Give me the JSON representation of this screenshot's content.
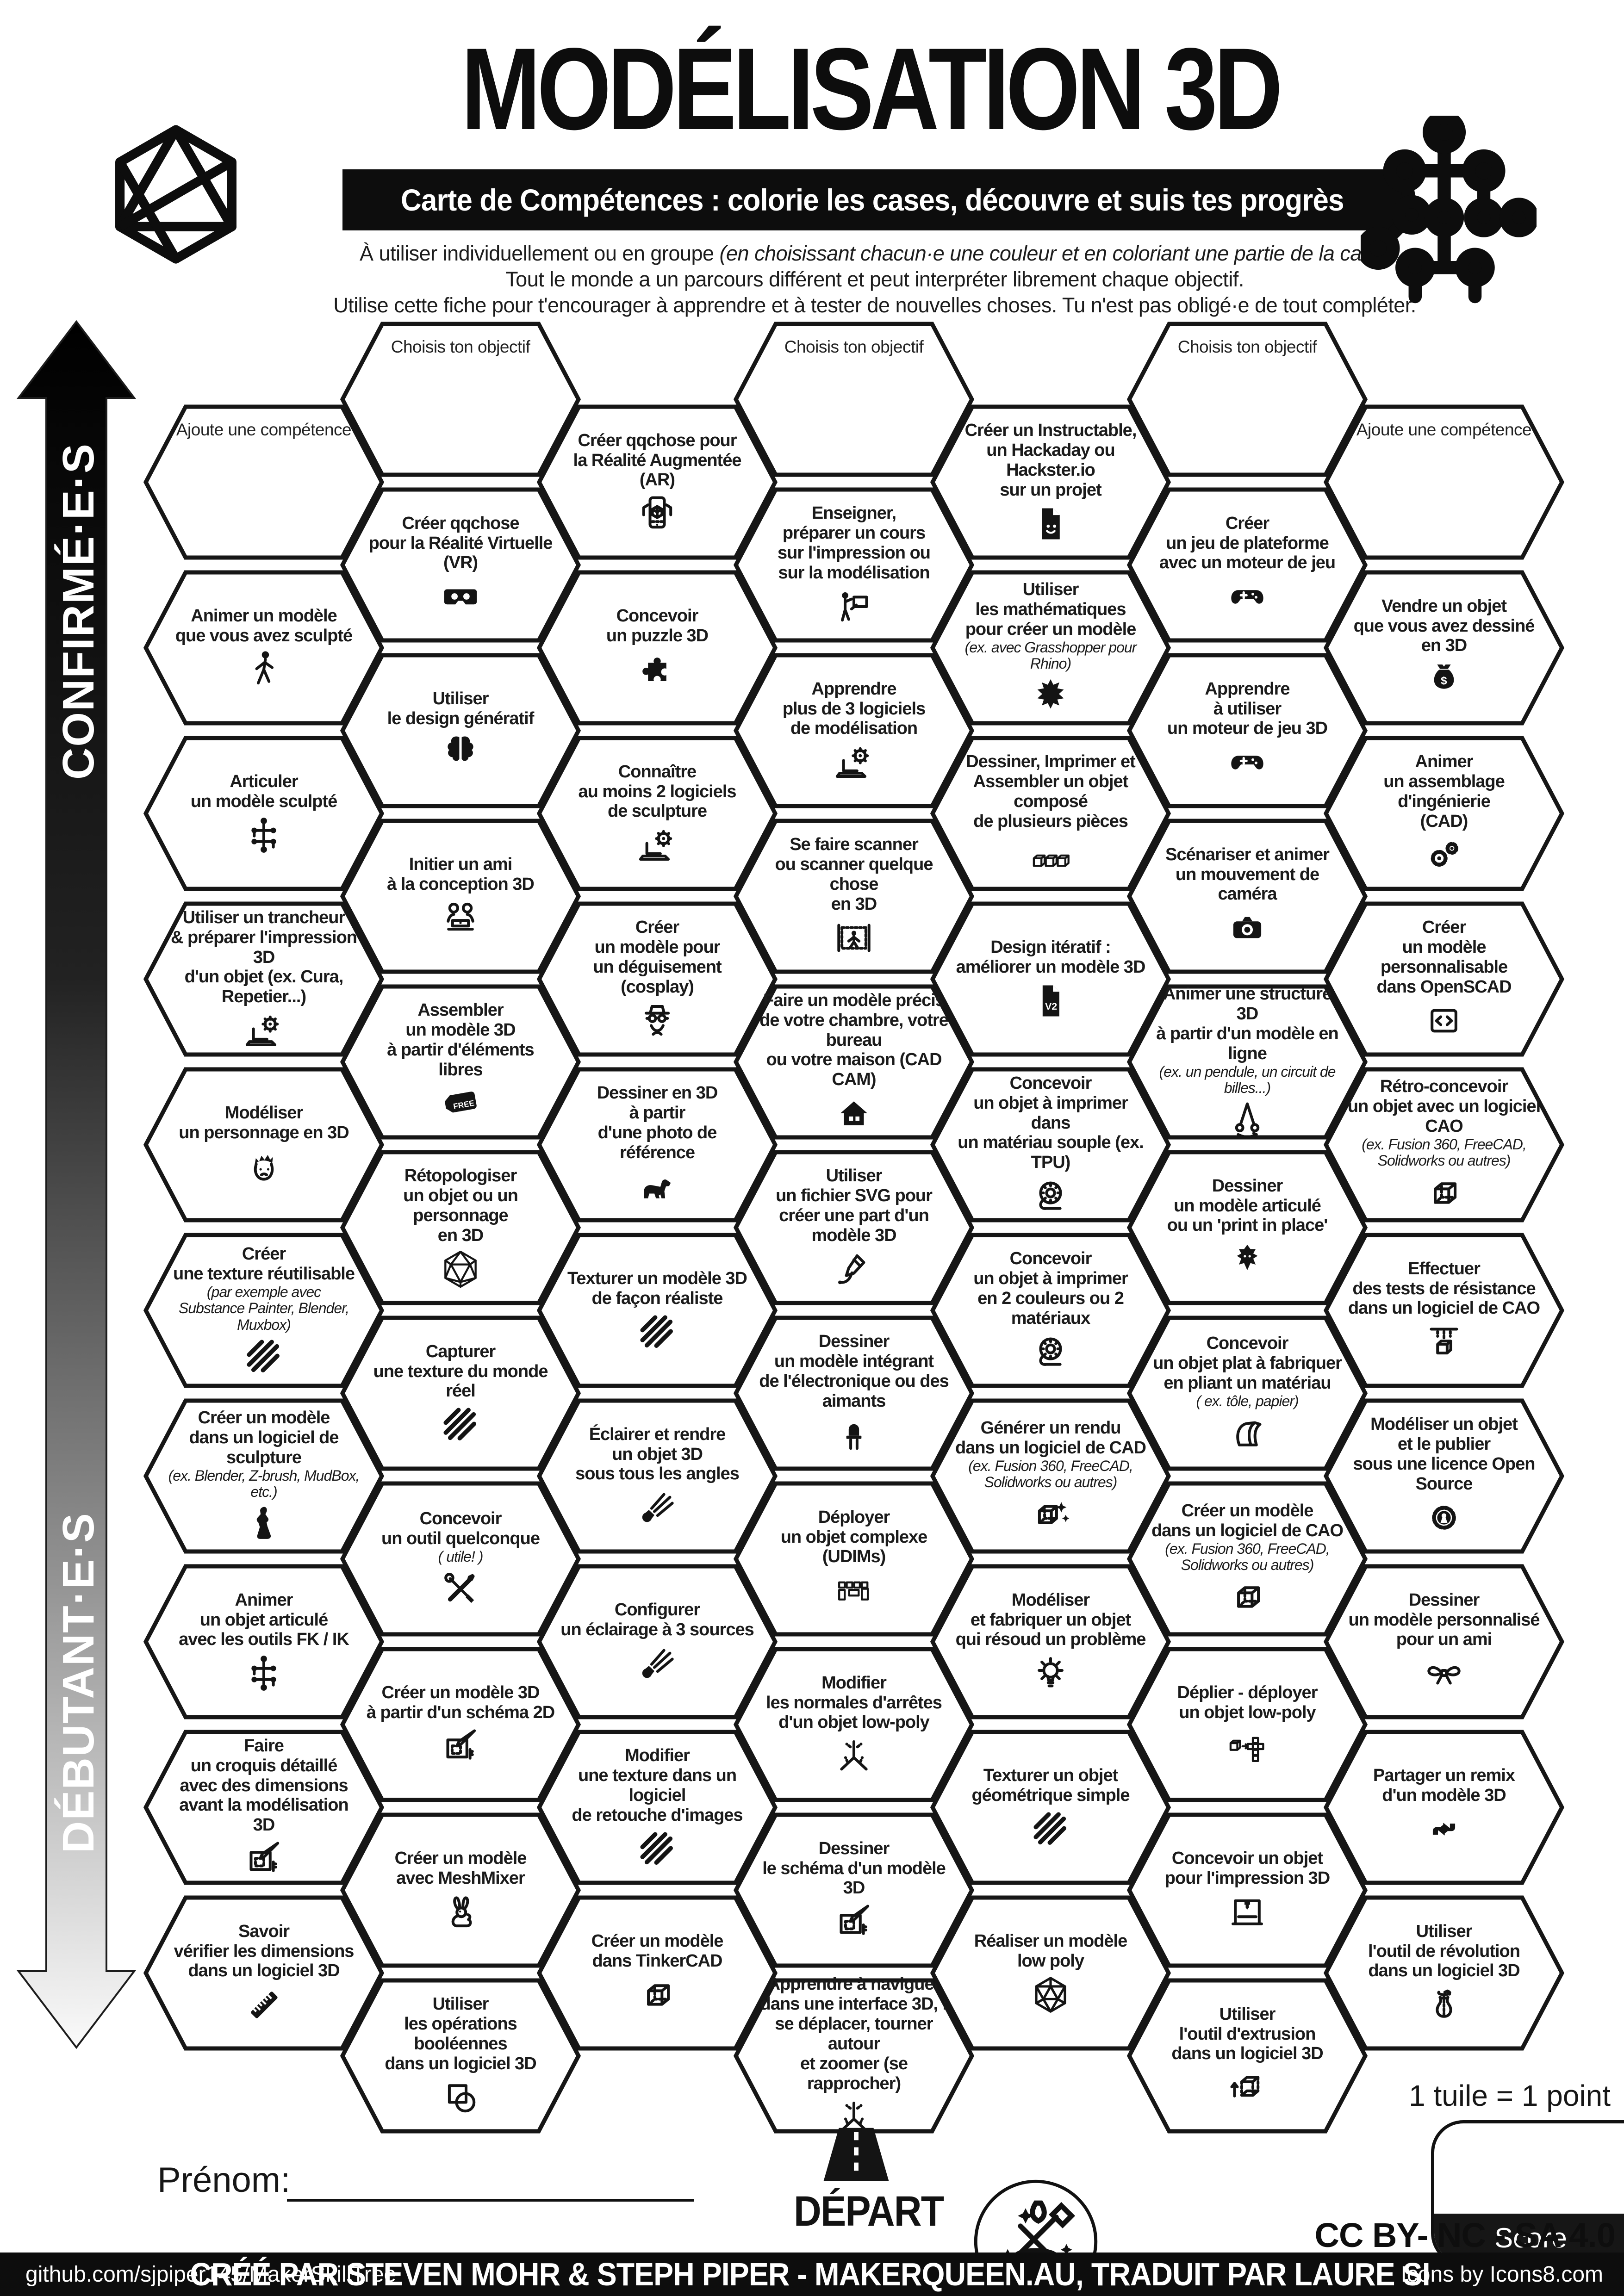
{
  "header": {
    "title": "MODÉLISATION 3D",
    "banner": "Carte de Compétences : colorie les cases, découvre et suis tes progrès",
    "intro1a": "À utiliser individuellement ou en groupe ",
    "intro1b": "(en choisissant chacun·e une couleur et en coloriant une partie de la case)",
    "intro2": "Tout le monde a un parcours différent et peut interpréter librement chaque objectif.",
    "intro3": "Utilise cette fiche pour t'encourager à apprendre et à tester de nouvelles choses. Tu n'est pas obligé·e de tout compléter."
  },
  "axis": {
    "top": "CONFIRMÉ·E·S",
    "bottom": "DÉBUTANT·E·S"
  },
  "name_field": {
    "label": "Prénom:"
  },
  "start": {
    "label": "DÉPART"
  },
  "score": {
    "note": "1 tuile = 1 point",
    "label": "Score"
  },
  "license": {
    "text": "CC BY- NC - SA 4.0"
  },
  "footer": {
    "left": "github.com/sjpiper145/MakerSkillTree",
    "center": "CRÉÉ PAR STEVEN MOHR & STEPH PIPER - MAKERQUEEN.AU, TRADUIT PAR LAURE SI",
    "right": "Icons by Icons8.com"
  },
  "colors": {
    "ink": "#141414",
    "paper": "#ffffff"
  },
  "columns": [
    {
      "stagger": "low",
      "hexes": [
        {
          "starter": true,
          "lines": [
            "Ajoute une compétence"
          ]
        },
        {
          "lines": [
            "Animer un modèle",
            "que vous avez sculpté"
          ],
          "icon": "person-walk"
        },
        {
          "lines": [
            "Articuler",
            "un modèle sculpté"
          ],
          "icon": "armature"
        },
        {
          "lines": [
            "Utiliser un trancheur",
            "& préparer l'impression 3D",
            "d'un objet (ex. Cura, Repetier...)"
          ],
          "icon": "laptop-gear"
        },
        {
          "lines": [
            "Modéliser",
            "un personnage en 3D"
          ],
          "icon": "face"
        },
        {
          "lines": [
            "Créer",
            "une texture réutilisable"
          ],
          "sub": [
            "(par exemple avec",
            "Substance Painter, Blender, Muxbox)"
          ],
          "icon": "stripes"
        },
        {
          "lines": [
            "Créer un modèle",
            "dans un logiciel de sculpture"
          ],
          "sub": [
            "(ex. Blender, Z-brush, MudBox, etc.)"
          ],
          "icon": "statue"
        },
        {
          "lines": [
            "Animer",
            "un objet articulé",
            "avec les outils FK / IK"
          ],
          "icon": "armature"
        },
        {
          "lines": [
            "Faire",
            "un croquis détaillé",
            "avec des dimensions",
            "avant la modélisation 3D"
          ],
          "icon": "sketch"
        },
        {
          "lines": [
            "Savoir",
            "vérifier les dimensions",
            "dans un logiciel 3D"
          ],
          "icon": "ruler"
        }
      ]
    },
    {
      "stagger": "high",
      "hexes": [
        {
          "starter": true,
          "lines": [
            "Choisis ton objectif"
          ]
        },
        {
          "lines": [
            "Créer qqchose",
            "pour la Réalité Virtuelle (VR)"
          ],
          "icon": "vr"
        },
        {
          "lines": [
            "Utiliser",
            "le design génératif"
          ],
          "icon": "brain"
        },
        {
          "lines": [
            "Initier un ami",
            "à la conception 3D"
          ],
          "icon": "people"
        },
        {
          "lines": [
            "Assembler",
            "un modèle 3D",
            "à partir d'éléments libres"
          ],
          "icon": "free"
        },
        {
          "lines": [
            "Rétopologiser",
            "un objet ou un personnage",
            "en 3D"
          ],
          "icon": "icosa-wire"
        },
        {
          "lines": [
            "Capturer",
            "une texture du monde réel"
          ],
          "icon": "stripes"
        },
        {
          "lines": [
            "Concevoir",
            "un outil quelconque"
          ],
          "sub": [
            "( utile! )"
          ],
          "icon": "tools"
        },
        {
          "lines": [
            "Créer un modèle 3D",
            "à partir d'un schéma 2D"
          ],
          "icon": "sketch"
        },
        {
          "lines": [
            "Créer un modèle",
            "avec MeshMixer"
          ],
          "icon": "rabbit"
        },
        {
          "lines": [
            "Utiliser",
            "les opérations booléennes",
            "dans un logiciel 3D"
          ],
          "icon": "boolean"
        }
      ]
    },
    {
      "stagger": "low",
      "hexes": [
        {
          "lines": [
            "Créer qqchose pour",
            "la Réalité Augmentée (AR)"
          ],
          "icon": "phone-ar"
        },
        {
          "lines": [
            "Concevoir",
            "un puzzle 3D"
          ],
          "icon": "puzzle"
        },
        {
          "lines": [
            "Connaître",
            "au moins 2 logiciels",
            "de sculpture"
          ],
          "icon": "laptop-gear"
        },
        {
          "lines": [
            "Créer",
            "un modèle pour",
            "un déguisement (cosplay)"
          ],
          "icon": "cosplay"
        },
        {
          "lines": [
            "Dessiner en 3D",
            "à partir",
            "d'une photo de référence"
          ],
          "icon": "dog"
        },
        {
          "lines": [
            "Texturer un modèle 3D",
            "de façon réaliste"
          ],
          "icon": "stripes"
        },
        {
          "lines": [
            "Éclairer et rendre",
            "un objet 3D",
            "sous tous les angles"
          ],
          "icon": "spotlight"
        },
        {
          "lines": [
            "Configurer",
            "un éclairage à 3 sources"
          ],
          "icon": "spotlight"
        },
        {
          "lines": [
            "Modifier",
            "une texture dans un logiciel",
            "de retouche d'images"
          ],
          "icon": "stripes"
        },
        {
          "lines": [
            "Créer un modèle",
            "dans TinkerCAD"
          ],
          "icon": "cube"
        }
      ]
    },
    {
      "stagger": "high",
      "hexes": [
        {
          "starter": true,
          "lines": [
            "Choisis ton objectif"
          ]
        },
        {
          "lines": [
            "Enseigner,",
            "préparer un cours",
            "sur l'impression ou",
            "sur la modélisation"
          ],
          "icon": "teacher"
        },
        {
          "lines": [
            "Apprendre",
            "plus de 3 logiciels",
            "de modélisation"
          ],
          "icon": "laptop-gear"
        },
        {
          "lines": [
            "Se faire scanner",
            "ou scanner quelque chose",
            "en 3D"
          ],
          "icon": "scan"
        },
        {
          "lines": [
            "Faire un modèle précis",
            "de votre chambre, votre bureau",
            "ou votre maison (CAD CAM)"
          ],
          "icon": "house"
        },
        {
          "lines": [
            "Utiliser",
            "un fichier SVG pour",
            "créer une part d'un modèle 3D"
          ],
          "icon": "svg-pen"
        },
        {
          "lines": [
            "Dessiner",
            "un modèle intégrant",
            "de l'électronique ou des aimants"
          ],
          "icon": "led"
        },
        {
          "lines": [
            "Déployer",
            "un objet complexe (UDIMs)"
          ],
          "icon": "udim"
        },
        {
          "lines": [
            "Modifier",
            "les normales d'arrêtes",
            "d'un objet low-poly"
          ],
          "icon": "normals"
        },
        {
          "lines": [
            "Dessiner",
            "le schéma d'un modèle 3D"
          ],
          "icon": "sketch"
        },
        {
          "lines": [
            "Apprendre à naviguer",
            "dans une interface 3D, :",
            "se déplacer, tourner autour",
            "et zoomer (se rapprocher)"
          ],
          "icon": "normals"
        }
      ]
    },
    {
      "stagger": "low",
      "hexes": [
        {
          "lines": [
            "Créer un Instructable,",
            "un Hackaday ou Hackster.io",
            "sur un projet"
          ],
          "icon": "doc-smile"
        },
        {
          "lines": [
            "Utiliser",
            "les mathématiques",
            "pour créer un modèle"
          ],
          "sub": [
            "(ex. avec Grasshopper pour Rhino)"
          ],
          "icon": "fractal"
        },
        {
          "lines": [
            "Dessiner, Imprimer et",
            "Assembler un objet composé",
            "de plusieurs pièces"
          ],
          "icon": "cubes3"
        },
        {
          "lines": [
            "Design itératif :",
            "améliorer un modèle 3D"
          ],
          "icon": "v2"
        },
        {
          "lines": [
            "Concevoir",
            "un objet à imprimer dans",
            "un matériau souple (ex. TPU)"
          ],
          "icon": "spool"
        },
        {
          "lines": [
            "Concevoir",
            "un objet à imprimer",
            "en 2 couleurs ou 2 matériaux"
          ],
          "icon": "spool"
        },
        {
          "lines": [
            "Générer un rendu",
            "dans un logiciel de CAD"
          ],
          "sub": [
            "(ex. Fusion 360, FreeCAD,",
            "Solidworks ou autres)"
          ],
          "icon": "cube-sparkle"
        },
        {
          "lines": [
            "Modéliser",
            "et fabriquer un objet",
            "qui résoud un problème"
          ],
          "icon": "bulb"
        },
        {
          "lines": [
            "Texturer un objet",
            "géométrique simple"
          ],
          "icon": "stripes"
        },
        {
          "lines": [
            "Réaliser un modèle",
            "low poly"
          ],
          "icon": "icosa"
        }
      ]
    },
    {
      "stagger": "high",
      "hexes": [
        {
          "starter": true,
          "lines": [
            "Choisis ton objectif"
          ]
        },
        {
          "lines": [
            "Créer",
            "un jeu de plateforme",
            "avec un moteur de jeu"
          ],
          "icon": "controller"
        },
        {
          "lines": [
            "Apprendre",
            "à utiliser",
            "un moteur de jeu 3D"
          ],
          "icon": "controller"
        },
        {
          "lines": [
            "Scénariser et animer",
            "un mouvement de caméra"
          ],
          "icon": "camera"
        },
        {
          "lines": [
            "Animer une structure 3D",
            "à partir d'un modèle en ligne"
          ],
          "sub": [
            "(ex. un pendule, un circuit de billes...)"
          ],
          "icon": "pendulum"
        },
        {
          "lines": [
            "Dessiner",
            "un modèle articulé",
            "ou un 'print in place'"
          ],
          "icon": "dragon"
        },
        {
          "lines": [
            "Concevoir",
            "un objet plat à fabriquer",
            "en pliant un matériau"
          ],
          "sub": [
            "( ex. tôle, papier)"
          ],
          "icon": "fold"
        },
        {
          "lines": [
            "Créer un modèle",
            "dans un logiciel de CAO"
          ],
          "sub": [
            "(ex. Fusion 360, FreeCAD,",
            "Solidworks ou autres)"
          ],
          "icon": "cube"
        },
        {
          "lines": [
            "Déplier - déployer",
            "un objet low-poly"
          ],
          "icon": "unfold"
        },
        {
          "lines": [
            "Concevoir un objet",
            "pour l'impression 3D"
          ],
          "icon": "printer"
        },
        {
          "lines": [
            "Utiliser",
            "l'outil d'extrusion",
            "dans un logiciel 3D"
          ],
          "icon": "extrude"
        }
      ]
    },
    {
      "stagger": "low",
      "hexes": [
        {
          "starter": true,
          "lines": [
            "Ajoute une compétence"
          ]
        },
        {
          "lines": [
            "Vendre un objet",
            "que vous avez dessiné en 3D"
          ],
          "icon": "money"
        },
        {
          "lines": [
            "Animer",
            "un assemblage d'ingénierie",
            "(CAD)"
          ],
          "icon": "gears"
        },
        {
          "lines": [
            "Créer",
            "un modèle personnalisable",
            "dans OpenSCAD"
          ],
          "icon": "code"
        },
        {
          "lines": [
            "Rétro-concevoir",
            "un objet avec un logiciel CAO"
          ],
          "sub": [
            "(ex. Fusion 360, FreeCAD,",
            "Solidworks ou autres)"
          ],
          "icon": "cube"
        },
        {
          "lines": [
            "Effectuer",
            "des tests de résistance",
            "dans un logiciel de CAO"
          ],
          "icon": "press"
        },
        {
          "lines": [
            "Modéliser un objet",
            "et le publier",
            "sous une licence Open Source"
          ],
          "icon": "os-gear"
        },
        {
          "lines": [
            "Dessiner",
            "un modèle personnalisé",
            "pour un ami"
          ],
          "icon": "bow"
        },
        {
          "lines": [
            "Partager un remix",
            "d'un modèle 3D"
          ],
          "icon": "remix"
        },
        {
          "lines": [
            "Utiliser",
            "l'outil de révolution",
            "dans un logiciel 3D"
          ],
          "icon": "vase"
        }
      ]
    }
  ]
}
